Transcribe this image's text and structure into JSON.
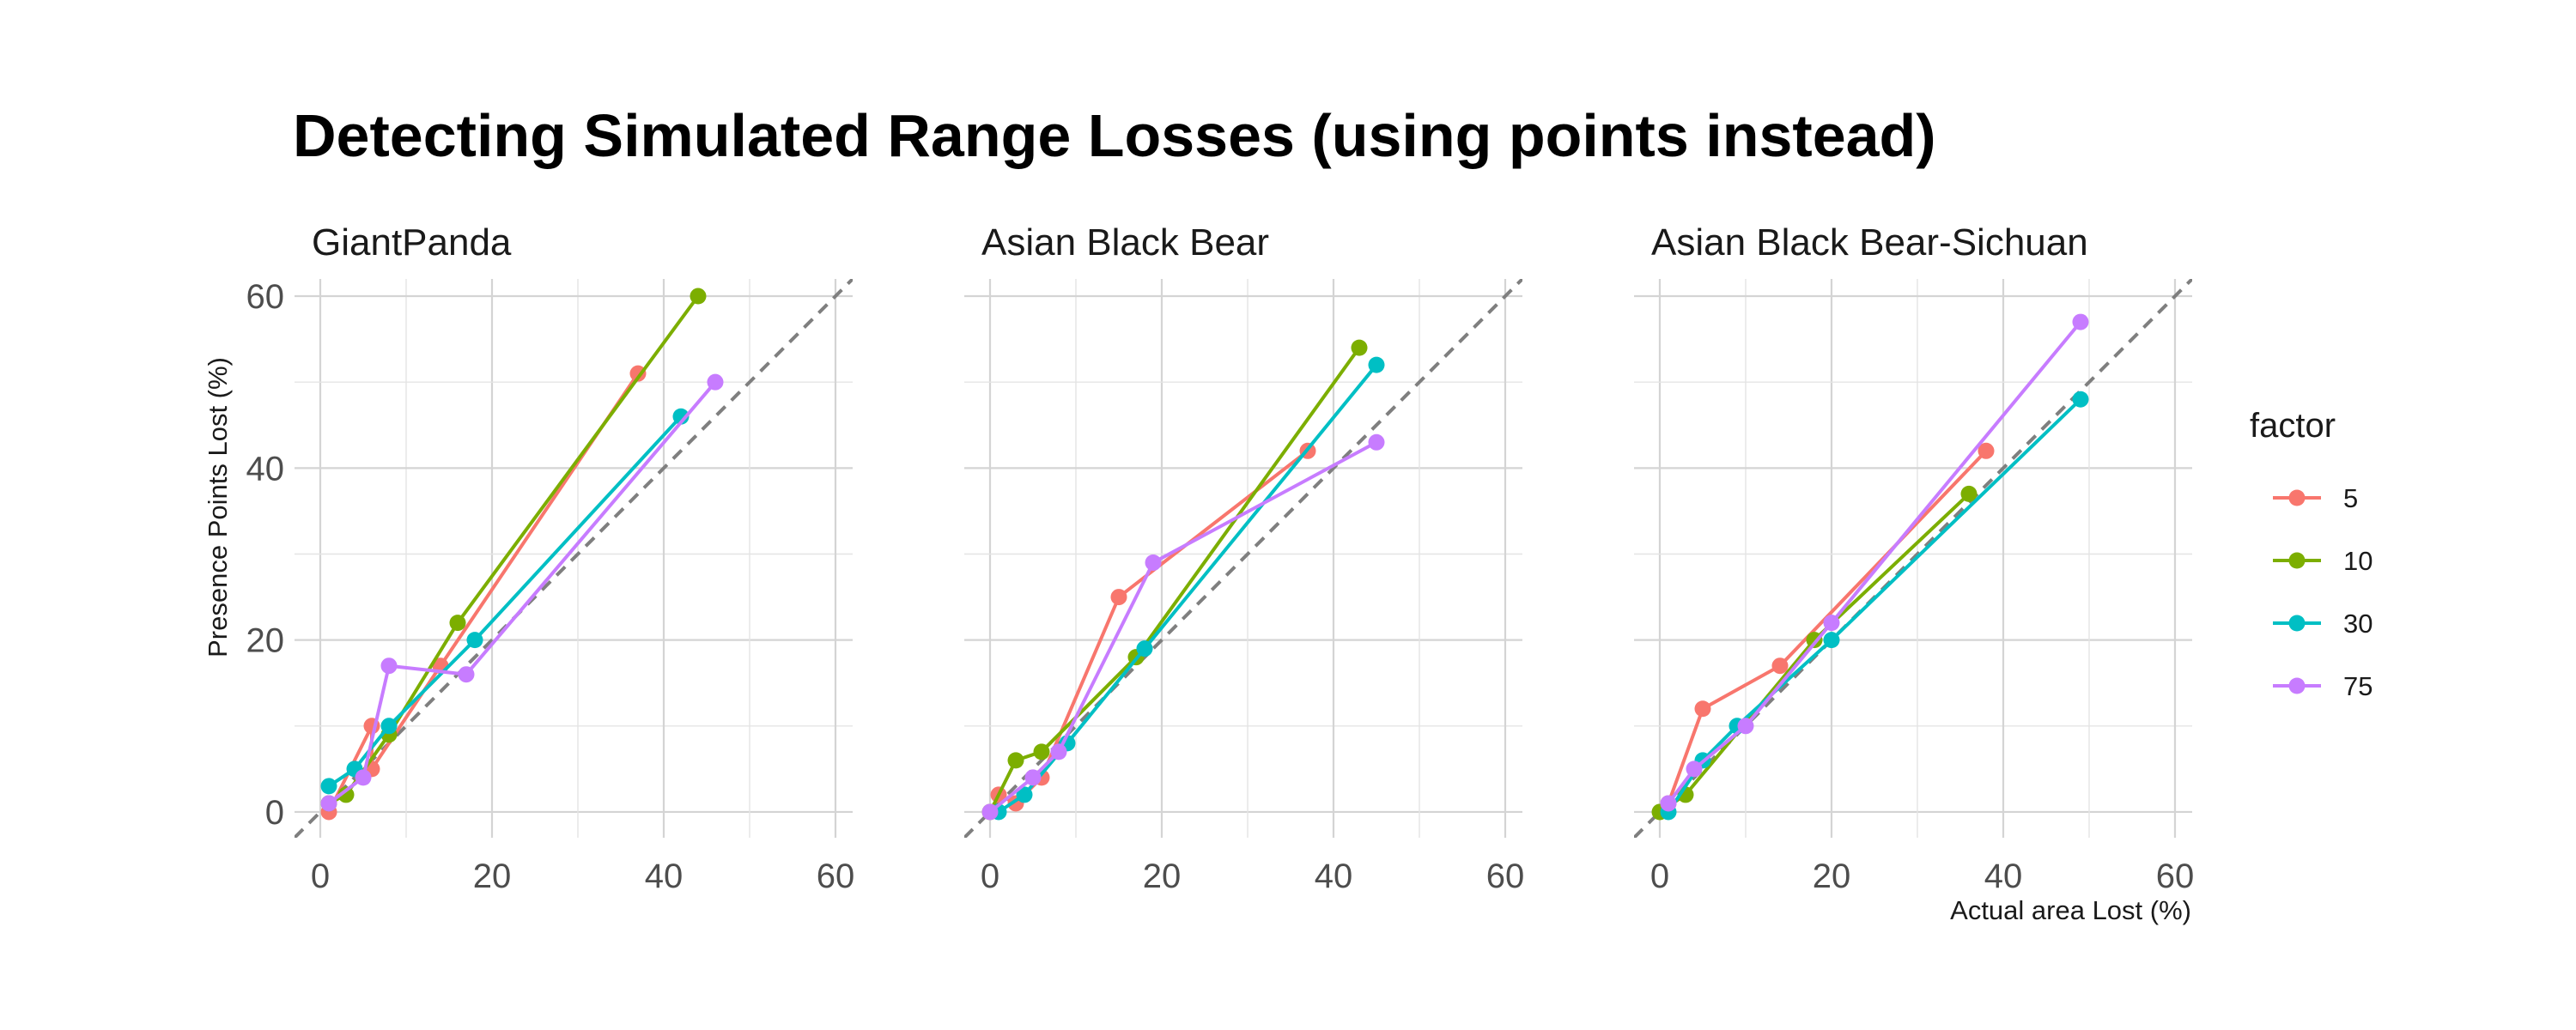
{
  "chart_data": {
    "type": "line",
    "title": "Detecting Simulated Range Losses (using points instead)",
    "xlabel": "Actual area Lost (%)",
    "ylabel": "Presence Points Lost (%)",
    "xlim": [
      -3,
      62
    ],
    "ylim": [
      -3,
      62
    ],
    "xticks": [
      "0",
      "20",
      "40",
      "60"
    ],
    "yticks": [
      "0",
      "20",
      "40",
      "60"
    ],
    "grid": true,
    "reference_line": "identity y = x (dashed grey)",
    "legend": {
      "title": "factor",
      "placement": "right",
      "entries": [
        "5",
        "10",
        "30",
        "75"
      ]
    },
    "colors": {
      "5": "#F8766D",
      "10": "#7CAE00",
      "30": "#00BFC4",
      "75": "#C77CFF",
      "reference": "#7f7f7f",
      "grid": "#d9d9d9"
    },
    "facets": [
      {
        "name": "GiantPanda",
        "series": [
          {
            "name": "5",
            "points": [
              [
                1,
                0
              ],
              [
                6,
                10
              ],
              [
                6,
                5
              ],
              [
                14,
                17
              ],
              [
                37,
                51
              ]
            ]
          },
          {
            "name": "10",
            "points": [
              [
                1,
                1
              ],
              [
                3,
                2
              ],
              [
                8,
                9
              ],
              [
                16,
                22
              ],
              [
                44,
                60
              ]
            ]
          },
          {
            "name": "30",
            "points": [
              [
                1,
                3
              ],
              [
                4,
                5
              ],
              [
                8,
                10
              ],
              [
                18,
                20
              ],
              [
                42,
                46
              ]
            ]
          },
          {
            "name": "75",
            "points": [
              [
                1,
                1
              ],
              [
                5,
                4
              ],
              [
                8,
                17
              ],
              [
                17,
                16
              ],
              [
                46,
                50
              ]
            ]
          }
        ]
      },
      {
        "name": "Asian Black Bear",
        "series": [
          {
            "name": "5",
            "points": [
              [
                1,
                2
              ],
              [
                3,
                1
              ],
              [
                6,
                4
              ],
              [
                15,
                25
              ],
              [
                37,
                42
              ]
            ]
          },
          {
            "name": "10",
            "points": [
              [
                0,
                0
              ],
              [
                3,
                6
              ],
              [
                6,
                7
              ],
              [
                17,
                18
              ],
              [
                43,
                54
              ]
            ]
          },
          {
            "name": "30",
            "points": [
              [
                1,
                0
              ],
              [
                4,
                2
              ],
              [
                9,
                8
              ],
              [
                18,
                19
              ],
              [
                45,
                52
              ]
            ]
          },
          {
            "name": "75",
            "points": [
              [
                0,
                0
              ],
              [
                5,
                4
              ],
              [
                8,
                7
              ],
              [
                19,
                29
              ],
              [
                45,
                43
              ]
            ]
          }
        ]
      },
      {
        "name": "Asian Black Bear-Sichuan",
        "series": [
          {
            "name": "5",
            "points": [
              [
                1,
                1
              ],
              [
                5,
                12
              ],
              [
                14,
                17
              ],
              [
                38,
                42
              ]
            ]
          },
          {
            "name": "10",
            "points": [
              [
                0,
                0
              ],
              [
                3,
                2
              ],
              [
                18,
                20
              ],
              [
                36,
                37
              ]
            ]
          },
          {
            "name": "30",
            "points": [
              [
                1,
                0
              ],
              [
                5,
                6
              ],
              [
                9,
                10
              ],
              [
                20,
                20
              ],
              [
                49,
                48
              ]
            ]
          },
          {
            "name": "75",
            "points": [
              [
                1,
                1
              ],
              [
                4,
                5
              ],
              [
                10,
                10
              ],
              [
                20,
                22
              ],
              [
                49,
                57
              ]
            ]
          }
        ]
      }
    ]
  }
}
